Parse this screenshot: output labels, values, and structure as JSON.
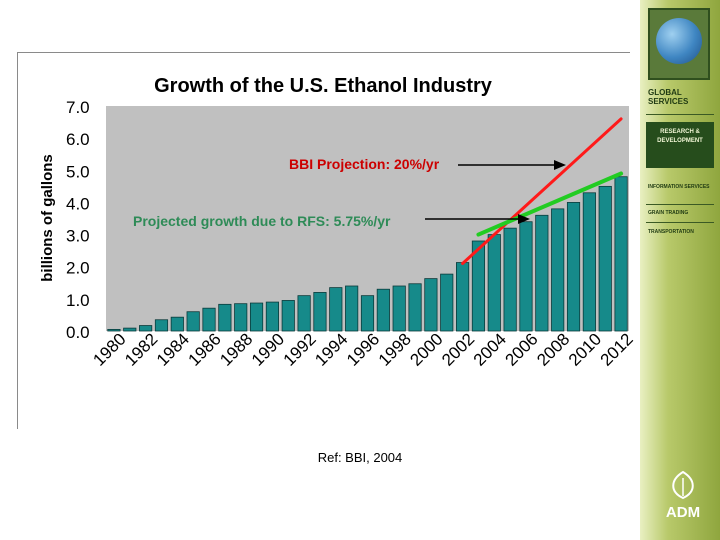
{
  "sidebar": {
    "global_services": "GLOBAL SERVICES",
    "research_development": "RESEARCH & DEVELOPMENT",
    "information_services": "INFORMATION SERVICES",
    "grain_trading": "GRAIN TRADING",
    "transportation": "TRANSPORTATION",
    "logo_text": "ADM"
  },
  "reference": "Ref: BBI, 2004",
  "colors": {
    "bar": "#168a8a",
    "plot_bg": "#c0c0c0",
    "bbi_line": "#ff1a1a",
    "rfs_line": "#22cc22",
    "annotation_red": "#cc0000",
    "annotation_green": "#2e8b57"
  },
  "chart_data": {
    "type": "bar",
    "title": "Growth of the U.S. Ethanol Industry",
    "ylabel": "billions of gallons",
    "xlabel": "",
    "ylim": [
      0,
      7
    ],
    "yticks": [
      "0.0",
      "1.0",
      "2.0",
      "3.0",
      "4.0",
      "5.0",
      "6.0",
      "7.0"
    ],
    "xtick_labels": [
      "1980",
      "1982",
      "1984",
      "1986",
      "1988",
      "1990",
      "1992",
      "1994",
      "1996",
      "1998",
      "2000",
      "2002",
      "2004",
      "2006",
      "2008",
      "2010",
      "2012"
    ],
    "categories": [
      "1980",
      "1981",
      "1982",
      "1983",
      "1984",
      "1985",
      "1986",
      "1987",
      "1988",
      "1989",
      "1990",
      "1991",
      "1992",
      "1993",
      "1994",
      "1995",
      "1996",
      "1997",
      "1998",
      "1999",
      "2000",
      "2001",
      "2002",
      "2003",
      "2004",
      "2005",
      "2006",
      "2007",
      "2008",
      "2009",
      "2010",
      "2011",
      "2012"
    ],
    "values": [
      0.05,
      0.09,
      0.17,
      0.35,
      0.43,
      0.6,
      0.71,
      0.83,
      0.85,
      0.87,
      0.9,
      0.95,
      1.1,
      1.2,
      1.35,
      1.4,
      1.1,
      1.3,
      1.4,
      1.47,
      1.63,
      1.77,
      2.13,
      2.8,
      3.0,
      3.2,
      3.4,
      3.6,
      3.8,
      4.0,
      4.3,
      4.5,
      4.8
    ],
    "grid": false,
    "annotations": [
      {
        "text": "BBI Projection: 20%/yr",
        "color": "#cc0000"
      },
      {
        "text": "Projected growth due to RFS: 5.75%/yr",
        "color": "#2e8b57"
      }
    ],
    "lines": [
      {
        "name": "BBI Projection",
        "color": "#ff1a1a",
        "x": [
          "2002",
          "2012"
        ],
        "y": [
          2.1,
          6.6
        ]
      },
      {
        "name": "RFS",
        "color": "#22cc22",
        "x": [
          "2003",
          "2012"
        ],
        "y": [
          3.0,
          4.9
        ]
      }
    ]
  }
}
